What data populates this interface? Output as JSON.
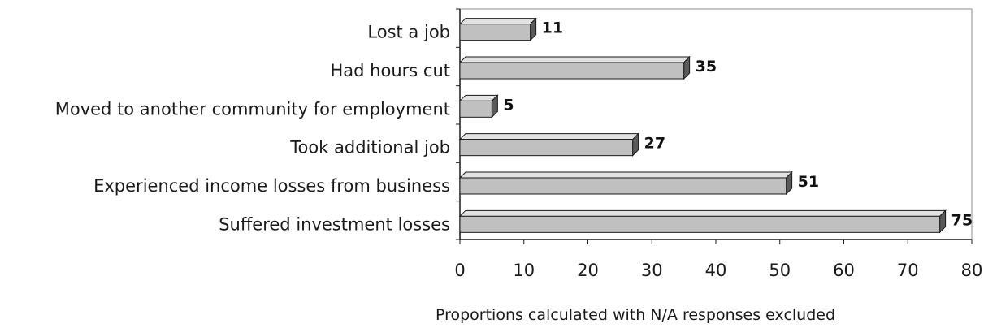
{
  "chart_data": {
    "type": "bar",
    "orientation": "horizontal",
    "categories": [
      "Lost a job",
      "Had hours cut",
      "Moved to another community for employment",
      "Took additional job",
      "Experienced income losses from business",
      "Suffered investment losses"
    ],
    "values": [
      11,
      35,
      5,
      27,
      51,
      75
    ],
    "xlabel": "Proportions calculated with N/A responses excluded",
    "xlim": [
      0,
      80
    ],
    "xticks": [
      "0",
      "10",
      "20",
      "30",
      "40",
      "50",
      "60",
      "70",
      "80"
    ],
    "grid": false,
    "legend": "none",
    "bar_color": "#c0c0c0",
    "bar_side_color": "#5a5a5a",
    "bar_top_color": "#e2e2e2",
    "bar_outline_color": "#1a1a1a"
  }
}
